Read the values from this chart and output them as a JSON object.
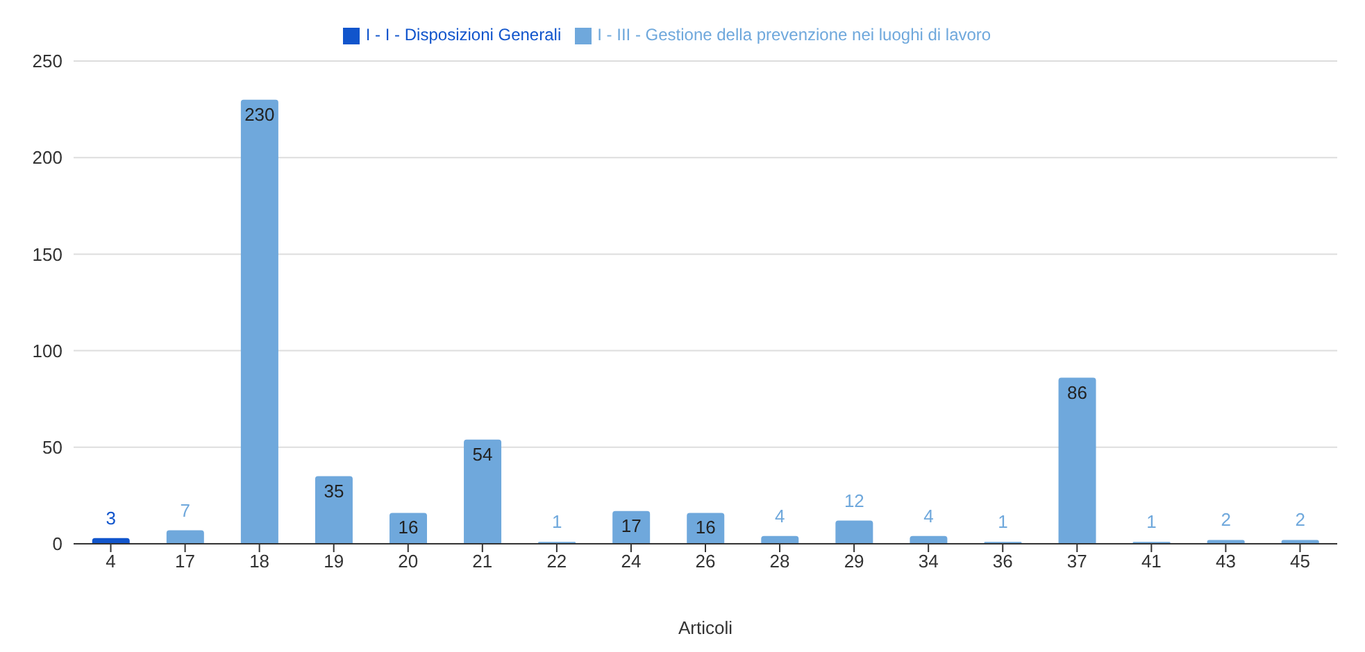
{
  "chart_data": {
    "type": "bar",
    "xlabel": "Articoli",
    "categories": [
      "4",
      "17",
      "18",
      "19",
      "20",
      "21",
      "22",
      "24",
      "26",
      "28",
      "29",
      "34",
      "36",
      "37",
      "41",
      "43",
      "45"
    ],
    "series": [
      {
        "name": "I - III - Gestione della prevenzione nei luoghi di lavoro",
        "color": "#6fa8dc",
        "values": [
          null,
          7,
          230,
          35,
          16,
          54,
          1,
          17,
          16,
          4,
          12,
          4,
          1,
          86,
          1,
          2,
          2
        ]
      },
      {
        "name": "I - I - Disposizioni Generali",
        "color": "#1155cc",
        "values": [
          3,
          null,
          null,
          null,
          null,
          null,
          null,
          null,
          null,
          null,
          null,
          null,
          null,
          null,
          null,
          null,
          null
        ]
      }
    ],
    "stacked": true,
    "ylim": [
      0,
      250
    ],
    "yticks": [
      0,
      50,
      100,
      150,
      200,
      250
    ],
    "grid": "y",
    "legend": "top",
    "data_labels": true
  }
}
